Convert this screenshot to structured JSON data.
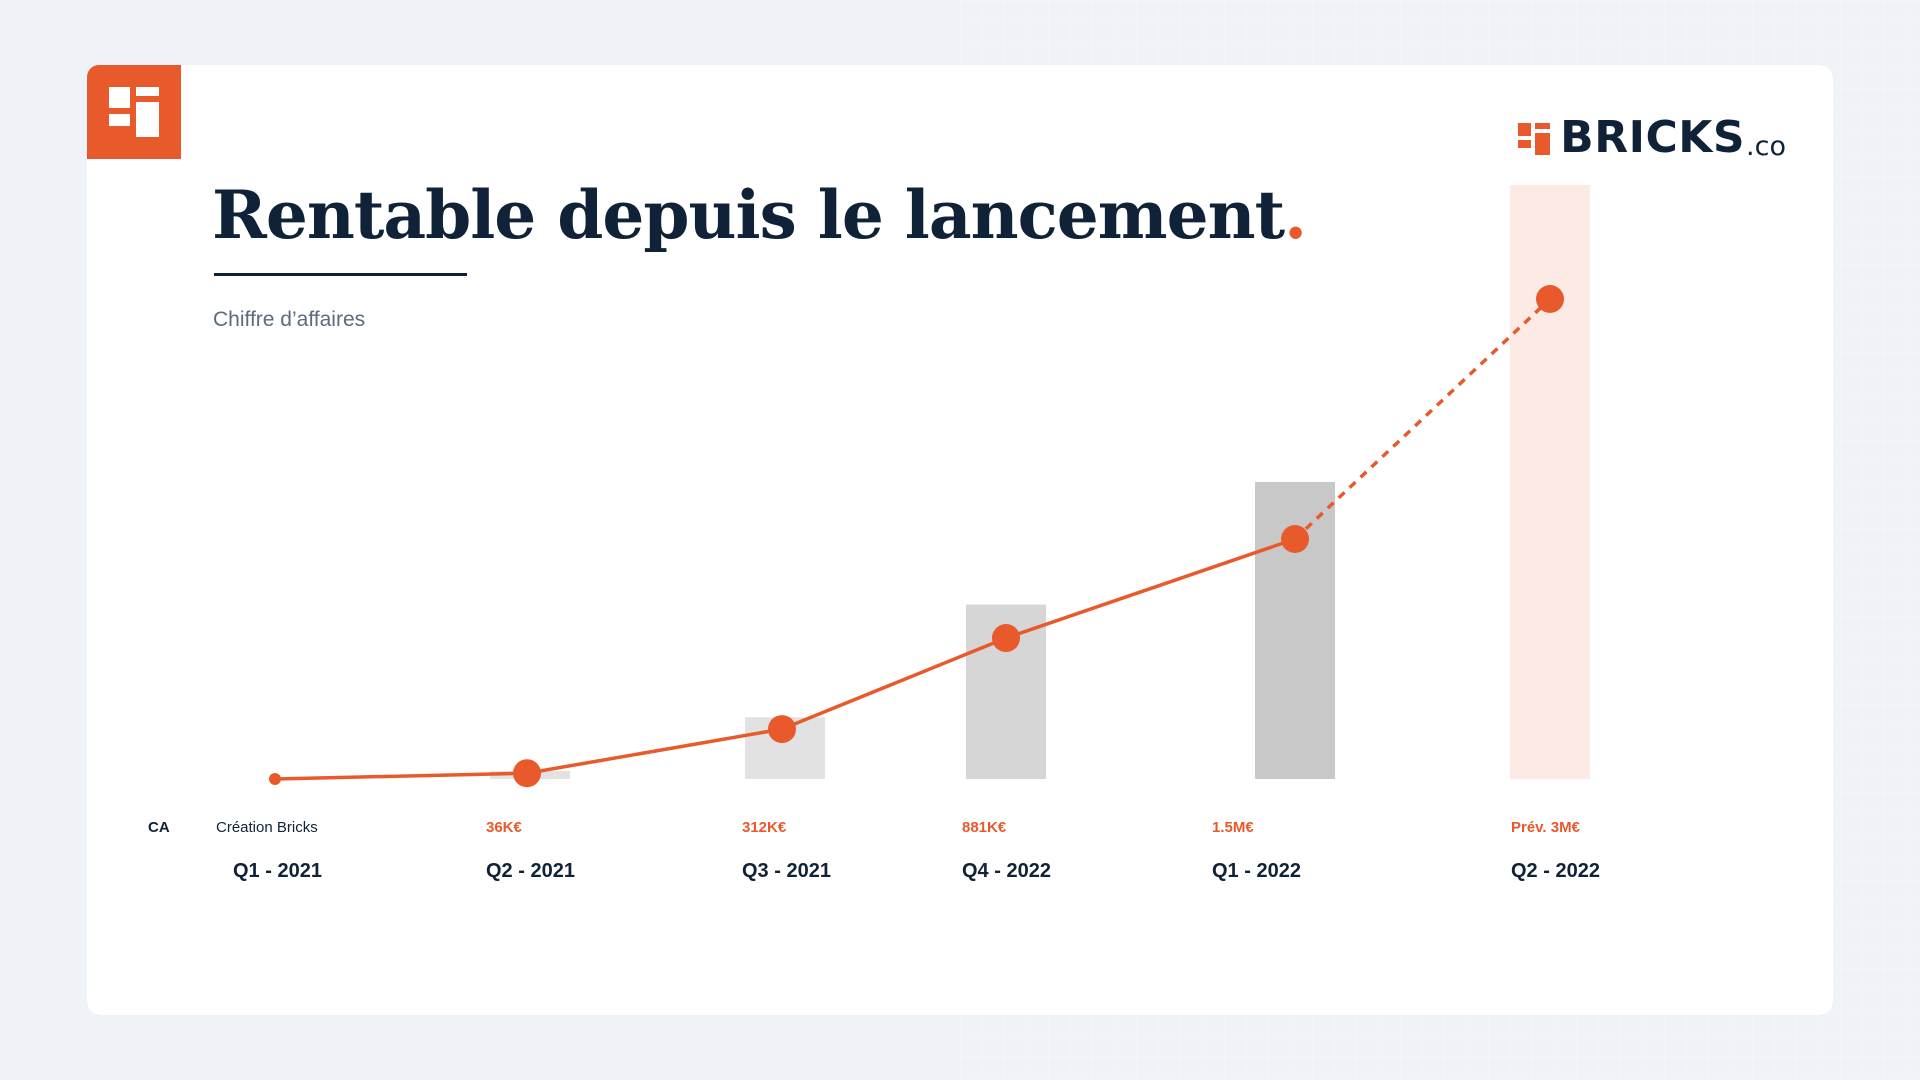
{
  "slide": {
    "title": "Rentable depuis le lancement",
    "title_dot": ".",
    "subtitle": "Chiffre d’affaires"
  },
  "brand": {
    "name": "BRICKS",
    "suffix": ".co"
  },
  "colors": {
    "accent": "#e85a2b",
    "navy": "#0f2237",
    "bar_light": "#e2e2e2",
    "bar_mid": "#d6d6d6",
    "bar_dark": "#c8c8c8",
    "forecast_bar": "#fcebe5"
  },
  "chart_data": {
    "type": "bar",
    "title": "Chiffre d’affaires",
    "row_label": "CA",
    "categories": [
      "Q1 - 2021",
      "Q2 - 2021",
      "Q3 - 2021",
      "Q4 - 2022",
      "Q1 - 2022",
      "Q2 - 2022"
    ],
    "value_labels": [
      "Création Bricks",
      "36K€",
      "312K€",
      "881K€",
      "1.5M€",
      "Prév. 3M€"
    ],
    "values": [
      0,
      36,
      312,
      881,
      1500,
      3000
    ],
    "units": "K€",
    "forecast": [
      false,
      false,
      false,
      false,
      false,
      true
    ],
    "ylim": [
      0,
      3000
    ],
    "grid": false,
    "legend": "none",
    "series": [
      {
        "values": [
          0,
          36,
          312,
          881,
          1500,
          3000
        ],
        "style": "line",
        "dashed_from_index": 4
      }
    ]
  }
}
